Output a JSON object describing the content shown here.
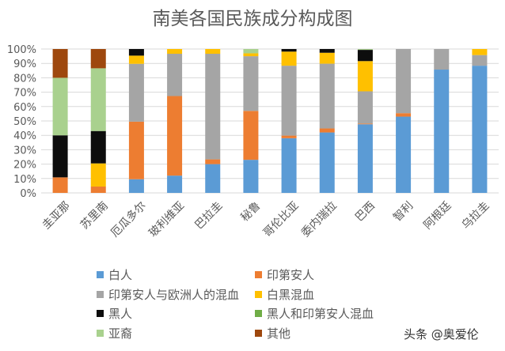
{
  "chart_data": {
    "type": "bar",
    "stacked": "percent",
    "title": "南美各国民族成分构成图",
    "categories": [
      "圭亚那",
      "苏里南",
      "厄瓜多尔",
      "玻利维亚",
      "巴拉圭",
      "秘鲁",
      "哥伦比亚",
      "委内瑞拉",
      "巴西",
      "智利",
      "阿根廷",
      "乌拉圭"
    ],
    "yticks": [
      "0%",
      "10%",
      "20%",
      "30%",
      "40%",
      "50%",
      "60%",
      "70%",
      "80%",
      "90%",
      "100%"
    ],
    "ylim": [
      0,
      100
    ],
    "grid": true,
    "legend_position": "bottom",
    "series": [
      {
        "name": "白人",
        "color": "#5B9BD5",
        "values": [
          0,
          0,
          9.5,
          12,
          20,
          23,
          38,
          42,
          47.7,
          53,
          85.7,
          88.4
        ]
      },
      {
        "name": "印第安人",
        "color": "#ED7D31",
        "values": [
          10.8,
          4.4,
          40,
          55.3,
          3.3,
          34,
          1.8,
          2.8,
          0.5,
          2.4,
          0,
          0
        ]
      },
      {
        "name": "印第安人与欧洲人的混血",
        "color": "#A5A5A5",
        "values": [
          0,
          0,
          40.2,
          29.4,
          73.4,
          38,
          48.6,
          45,
          22.4,
          44.6,
          14.3,
          7.4
        ]
      },
      {
        "name": "白黑混血",
        "color": "#FFC000",
        "values": [
          0,
          16.1,
          5.7,
          3.3,
          3.3,
          2,
          9.8,
          7.6,
          21,
          0,
          0,
          4.2
        ]
      },
      {
        "name": "黑人",
        "color": "#0D0D0D",
        "values": [
          29.2,
          22.5,
          4.6,
          0,
          0,
          0,
          1.8,
          2.6,
          7.8,
          0,
          0,
          0
        ]
      },
      {
        "name": "黑人和印第安人混血",
        "color": "#70AD47",
        "values": [
          0,
          0,
          0,
          0,
          0,
          0,
          0,
          0,
          0,
          0,
          0,
          0
        ]
      },
      {
        "name": "亚裔",
        "color": "#A9D18E",
        "values": [
          40,
          43.6,
          0,
          0,
          0,
          3,
          0,
          0,
          0.6,
          0,
          0,
          0
        ]
      },
      {
        "name": "其他",
        "color": "#9E480E",
        "values": [
          20,
          13.4,
          0,
          0,
          0,
          0,
          0,
          0,
          0,
          0,
          0,
          0
        ]
      }
    ]
  },
  "watermark": "头条 @奥爱伦"
}
